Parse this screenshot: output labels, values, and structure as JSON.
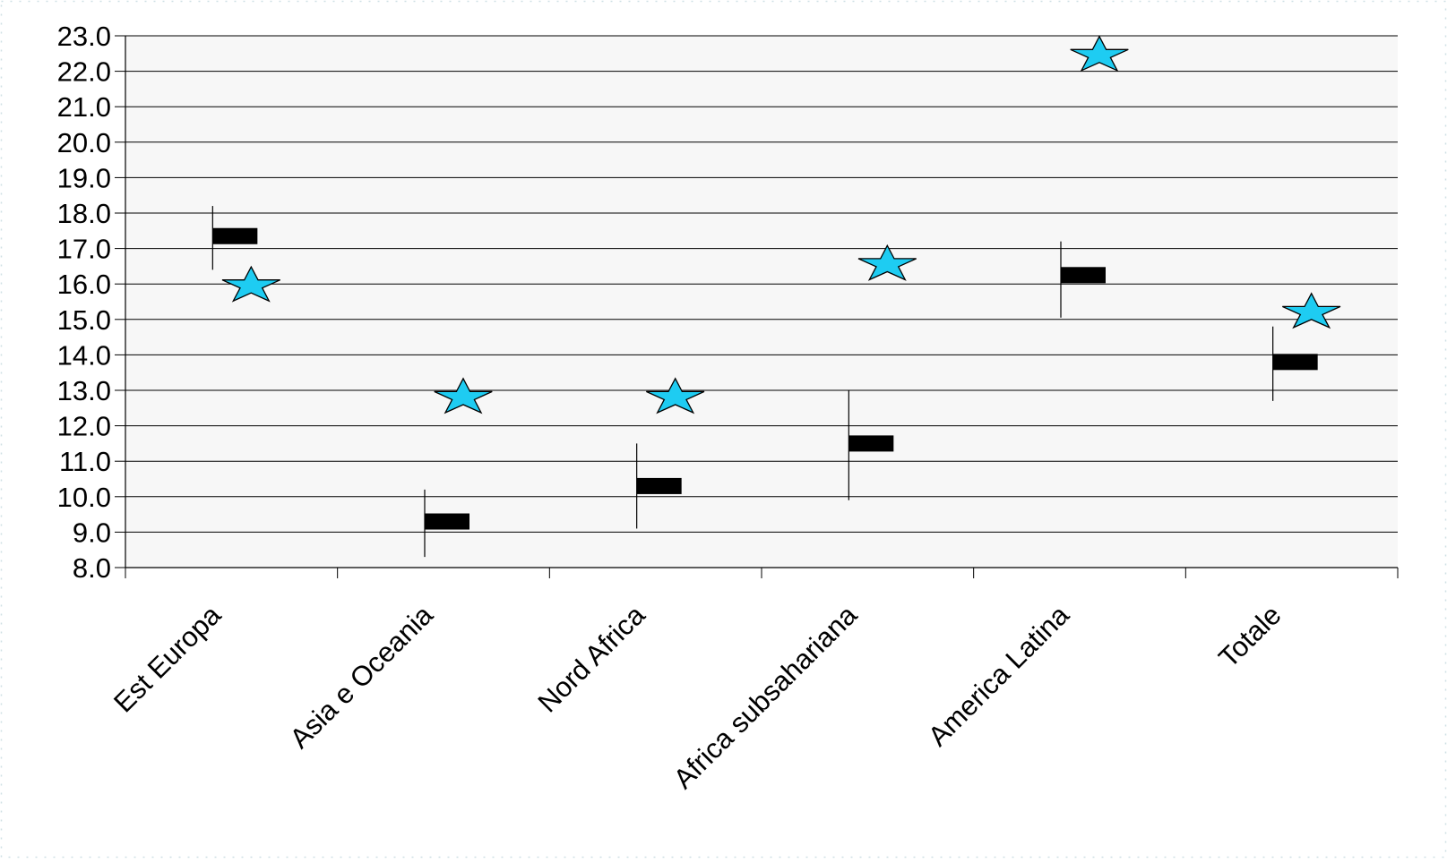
{
  "chart_data": {
    "type": "scatter",
    "categories": [
      "Est Europa",
      "Asia e Oceania",
      "Nord Africa",
      "Africa subsahariana",
      "America Latina",
      "Totale"
    ],
    "ylim": [
      8.0,
      23.0
    ],
    "ytick_step": 1.0,
    "yticks": [
      "8.0",
      "9.0",
      "10.0",
      "11.0",
      "12.0",
      "13.0",
      "14.0",
      "15.0",
      "16.0",
      "17.0",
      "18.0",
      "19.0",
      "20.0",
      "21.0",
      "22.0",
      "23.0"
    ],
    "grid": true,
    "series": [
      {
        "marker": "bar",
        "color": "#000000",
        "values": [
          17.35,
          9.3,
          10.3,
          11.5,
          16.25,
          13.8
        ],
        "low": [
          16.4,
          8.3,
          9.1,
          9.9,
          15.05,
          12.7
        ],
        "high": [
          18.2,
          10.2,
          11.5,
          13.0,
          17.2,
          14.8
        ]
      },
      {
        "marker": "star",
        "color": "#1ECCF2",
        "values": [
          15.95,
          12.8,
          12.8,
          16.55,
          22.45,
          15.2
        ]
      }
    ]
  },
  "colors": {
    "plot_background": "#F7F7F7",
    "gridline": "#000000",
    "star_fill": "#1ECCF2",
    "bar_fill": "#000000"
  }
}
